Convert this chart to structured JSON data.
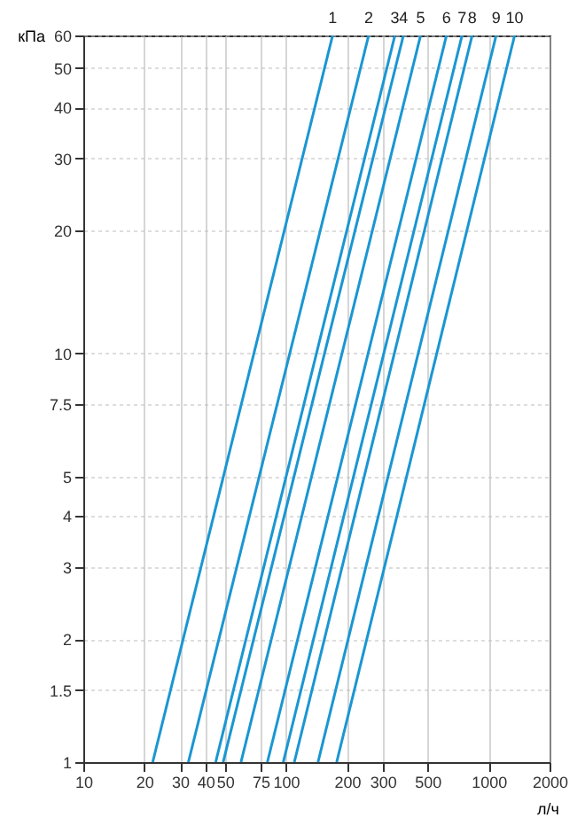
{
  "chart_data": {
    "type": "line",
    "xlabel": "л/ч",
    "ylabel": "кПа",
    "log": "xy",
    "grid": true,
    "legend": false,
    "marker": "none",
    "line_style": "solid",
    "xlim": [
      10,
      2000
    ],
    "xticks": [
      10,
      20,
      30,
      40,
      50,
      75,
      100,
      200,
      300,
      500,
      1000,
      2000
    ],
    "ylim": [
      1,
      60
    ],
    "yticks": [
      1,
      1.5,
      2,
      3,
      4,
      5,
      7.5,
      10,
      20,
      30,
      40,
      50,
      60
    ],
    "series": [
      {
        "name": "1",
        "color": "#1a96d2",
        "x": [
          22,
          170
        ],
        "values": [
          1,
          60
        ]
      },
      {
        "name": "2",
        "color": "#1a96d2",
        "x": [
          33,
          256
        ],
        "values": [
          1,
          60
        ]
      },
      {
        "name": "3",
        "color": "#1a96d2",
        "x": [
          45,
          345
        ],
        "values": [
          1,
          60
        ]
      },
      {
        "name": "4",
        "color": "#1a96d2",
        "x": [
          49,
          380
        ],
        "values": [
          1,
          60
        ]
      },
      {
        "name": "5",
        "color": "#1a96d2",
        "x": [
          60,
          462
        ],
        "values": [
          1,
          60
        ]
      },
      {
        "name": "6",
        "color": "#1a96d2",
        "x": [
          81,
          620
        ],
        "values": [
          1,
          60
        ]
      },
      {
        "name": "7",
        "color": "#1a96d2",
        "x": [
          97,
          740
        ],
        "values": [
          1,
          60
        ]
      },
      {
        "name": "8",
        "color": "#1a96d2",
        "x": [
          110,
          830
        ],
        "values": [
          1,
          60
        ]
      },
      {
        "name": "9",
        "color": "#1a96d2",
        "x": [
          144,
          1090
        ],
        "values": [
          1,
          60
        ]
      },
      {
        "name": "10",
        "color": "#1a96d2",
        "x": [
          178,
          1345
        ],
        "values": [
          1,
          60
        ]
      }
    ]
  }
}
